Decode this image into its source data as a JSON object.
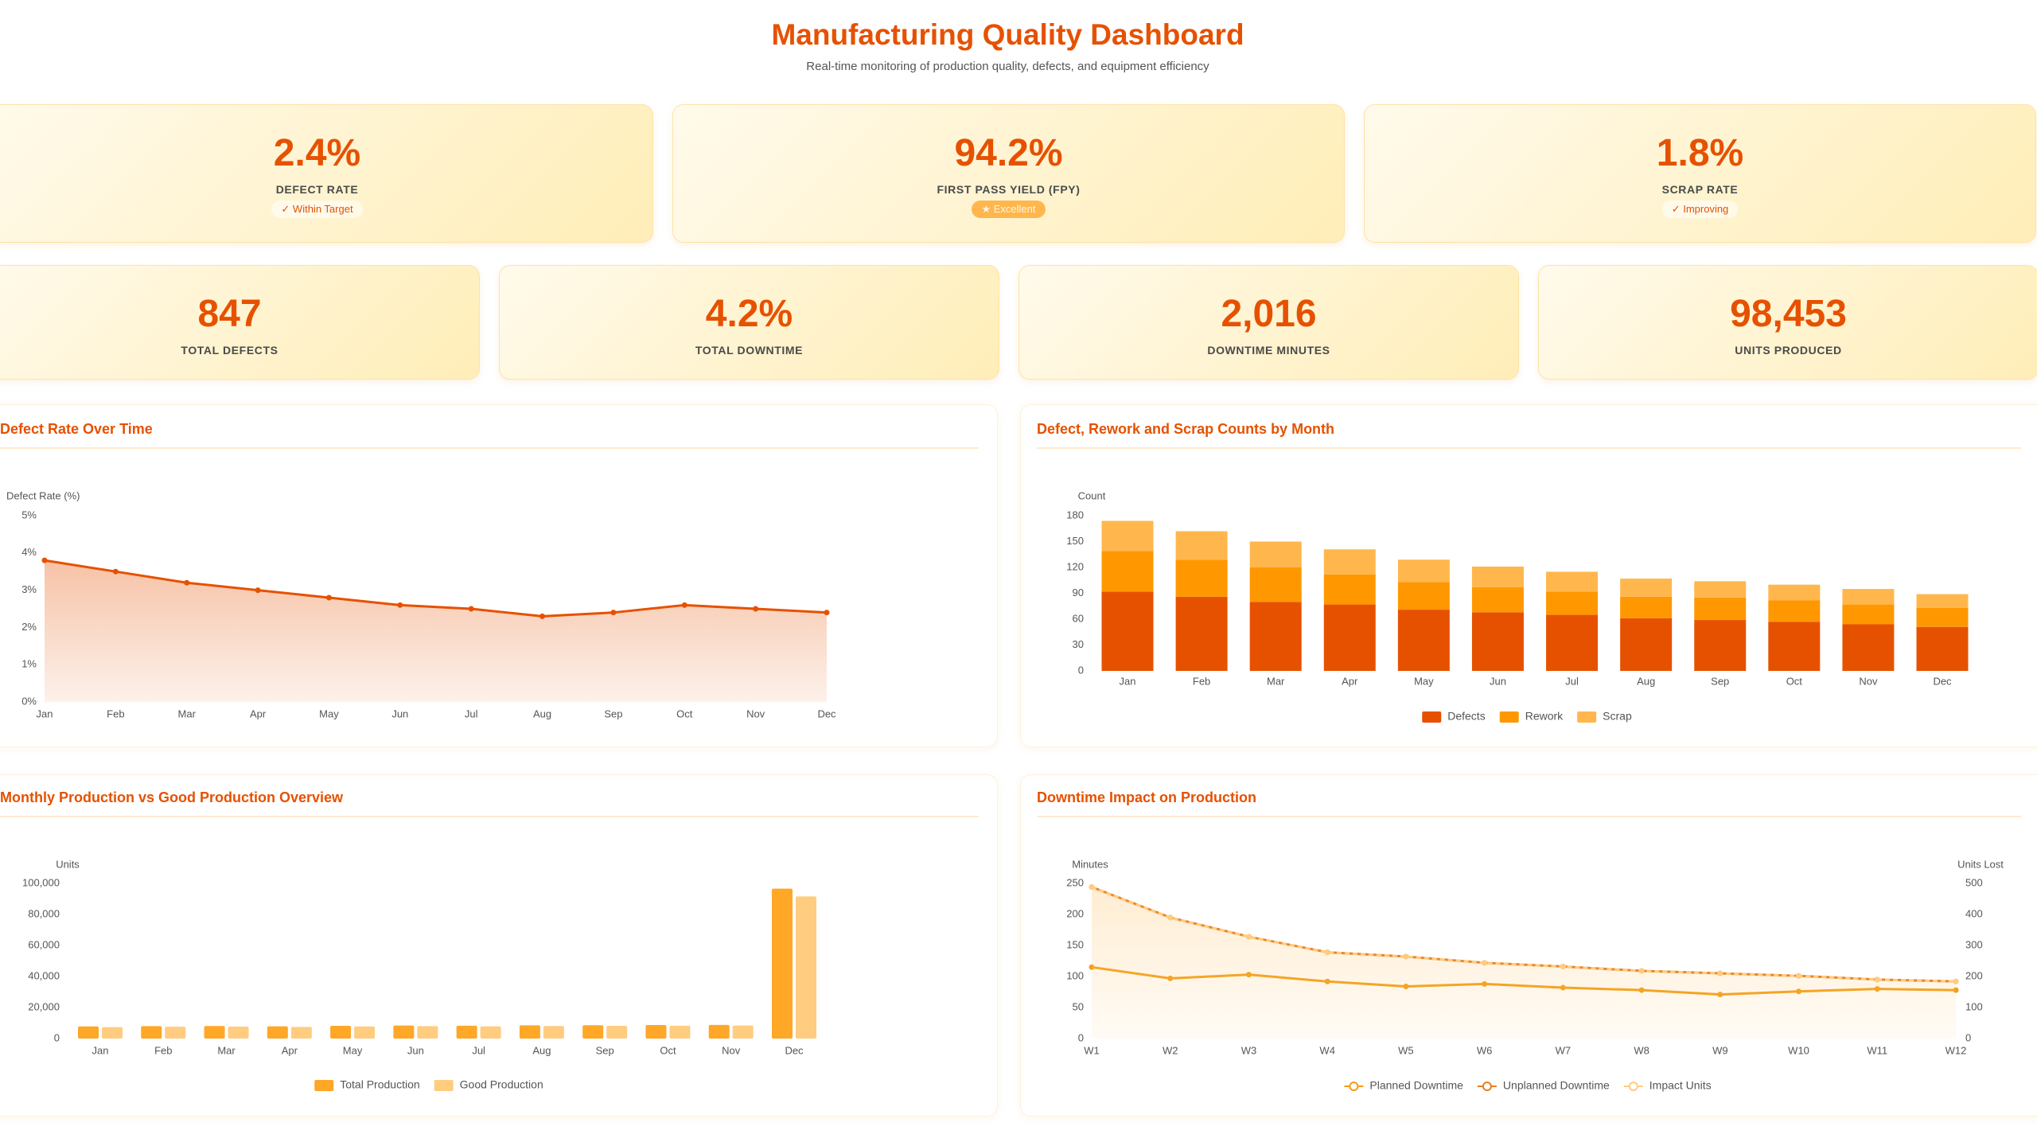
{
  "header": {
    "title": "Manufacturing Quality Dashboard",
    "subtitle": "Real-time monitoring of production quality, defects, and equipment efficiency"
  },
  "kpis_primary": [
    {
      "value": "2.4%",
      "label": "DEFECT RATE",
      "badge": "✓ Within Target"
    },
    {
      "value": "94.2%",
      "label": "FIRST PASS YIELD (FPY)",
      "badge": "★ Excellent"
    },
    {
      "value": "1.8%",
      "label": "SCRAP RATE",
      "badge": "✓ Improving"
    }
  ],
  "kpis_secondary": [
    {
      "value": "847",
      "label": "TOTAL DEFECTS"
    },
    {
      "value": "4.2%",
      "label": "TOTAL DOWNTIME"
    },
    {
      "value": "2,016",
      "label": "DOWNTIME MINUTES"
    },
    {
      "value": "98,453",
      "label": "UNITS PRODUCED"
    }
  ],
  "chart_data": [
    {
      "type": "line",
      "title": "Defect Rate Over Time",
      "y_label": "Defect Rate (%)",
      "categories": [
        "Jan",
        "Feb",
        "Mar",
        "Apr",
        "May",
        "Jun",
        "Jul",
        "Aug",
        "Sep",
        "Oct",
        "Nov",
        "Dec"
      ],
      "values": [
        3.8,
        3.5,
        3.2,
        3.0,
        2.8,
        2.6,
        2.5,
        2.3,
        2.4,
        2.6,
        2.5,
        2.4
      ],
      "color": "#e65100",
      "area": true,
      "ylim": [
        0,
        5
      ],
      "yticks": [
        {
          "value": 0,
          "label": "0%"
        },
        {
          "value": 1,
          "label": "1%"
        },
        {
          "value": 2,
          "label": "2%"
        },
        {
          "value": 3,
          "label": "3%"
        },
        {
          "value": 4,
          "label": "4%"
        },
        {
          "value": 5,
          "label": "5%"
        }
      ],
      "grid": false
    },
    {
      "type": "stacked_bar",
      "title": "Defect, Rework and Scrap Counts by Month",
      "y_label": "Count",
      "categories": [
        "Jan",
        "Feb",
        "Mar",
        "Apr",
        "May",
        "Jun",
        "Jul",
        "Aug",
        "Sep",
        "Oct",
        "Nov",
        "Dec"
      ],
      "series": [
        {
          "name": "Defects",
          "color": "#e65100",
          "values": [
            92,
            86,
            80,
            77,
            71,
            68,
            65,
            61,
            59,
            57,
            54,
            51
          ]
        },
        {
          "name": "Rework",
          "color": "#ff9800",
          "values": [
            47,
            43,
            40,
            35,
            32,
            29,
            27,
            25,
            26,
            25,
            23,
            22
          ]
        },
        {
          "name": "Scrap",
          "color": "#ffb74d",
          "values": [
            35,
            33,
            30,
            29,
            26,
            24,
            23,
            21,
            19,
            18,
            18,
            16
          ]
        }
      ],
      "ylim": [
        0,
        180
      ],
      "yticks": [
        0,
        30,
        60,
        90,
        120,
        150,
        180
      ],
      "grid": false,
      "legend": "bottom"
    },
    {
      "type": "grouped_bar",
      "title": "Monthly Production vs Good Production Overview",
      "y_label": "Units",
      "categories": [
        "Jan",
        "Feb",
        "Mar",
        "Apr",
        "May",
        "Jun",
        "Jul",
        "Aug",
        "Sep",
        "Oct",
        "Nov",
        "Dec"
      ],
      "series": [
        {
          "name": "Total Production",
          "color": "#ffa726",
          "values": [
            7800,
            8000,
            8100,
            7900,
            8200,
            8400,
            8300,
            8500,
            8600,
            8700,
            8800,
            96600
          ]
        },
        {
          "name": "Good Production",
          "color": "#ffcc80",
          "values": [
            7400,
            7600,
            7700,
            7500,
            7800,
            8000,
            7900,
            8100,
            8200,
            8300,
            8400,
            91600
          ]
        }
      ],
      "ylim": [
        0,
        100000
      ],
      "yticks": [
        0,
        {
          "value": 20000,
          "label": "20,000"
        },
        {
          "value": 40000,
          "label": "40,000"
        },
        {
          "value": 60000,
          "label": "60,000"
        },
        {
          "value": 80000,
          "label": "80,000"
        },
        {
          "value": 100000,
          "label": "100,000"
        }
      ],
      "grid": false,
      "legend": "bottom"
    },
    {
      "type": "line",
      "title": "Downtime Impact on Production",
      "y_label": "Minutes",
      "y2_label": "Units Lost",
      "categories": [
        "W1",
        "W2",
        "W3",
        "W4",
        "W5",
        "W6",
        "W7",
        "W8",
        "W9",
        "W10",
        "W11",
        "W12"
      ],
      "series": [
        {
          "name": "Planned Downtime",
          "color": "#f39c12",
          "values": [
            115,
            97,
            103,
            92,
            84,
            88,
            82,
            78,
            71,
            76,
            80,
            78
          ]
        },
        {
          "name": "Unplanned Downtime",
          "color": "#e67e22",
          "values": [
            244,
            195,
            164,
            139,
            132,
            122,
            116,
            109,
            105,
            101,
            95,
            92
          ]
        },
        {
          "name": "Impact Units",
          "color": "#ffcc80",
          "axis": "y2",
          "dashed": true,
          "area": true,
          "values": [
            488,
            390,
            328,
            278,
            264,
            244,
            232,
            218,
            210,
            202,
            190,
            184
          ]
        }
      ],
      "ylim": [
        0,
        250
      ],
      "yticks": [
        0,
        50,
        100,
        150,
        200,
        250
      ],
      "y2lim": [
        0,
        500
      ],
      "y2ticks": [
        0,
        100,
        200,
        300,
        400,
        500
      ],
      "grid": false,
      "legend": "bottom"
    }
  ]
}
